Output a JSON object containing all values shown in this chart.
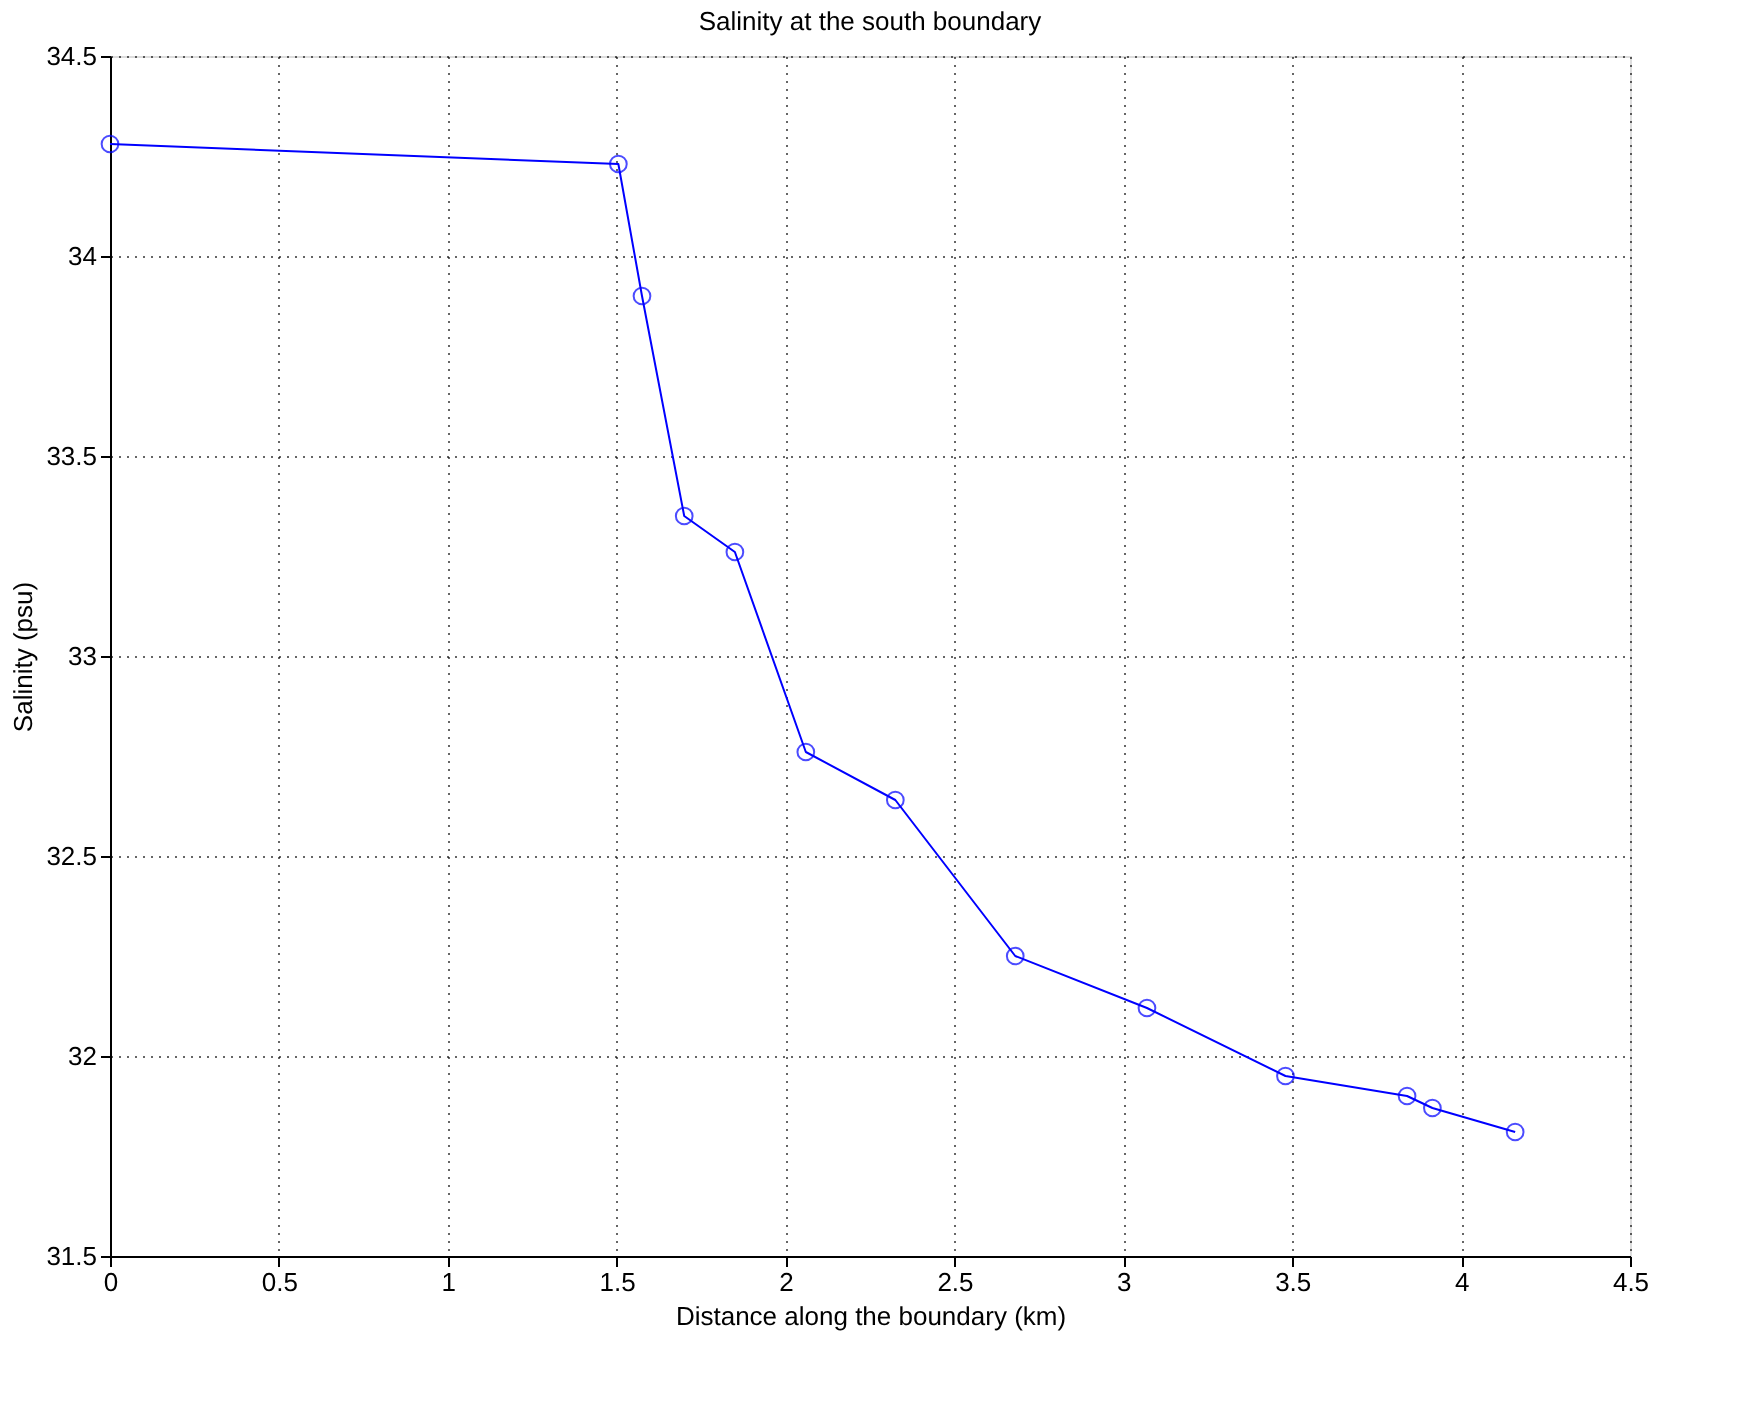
{
  "chart_data": {
    "type": "line",
    "title": "Salinity at the south boundary",
    "xlabel": "Distance along the boundary (km)",
    "ylabel": "Salinity (psu)",
    "x": [
      0,
      1.505,
      1.575,
      1.7,
      1.85,
      2.06,
      2.325,
      2.68,
      3.07,
      3.48,
      3.84,
      3.915,
      4.16
    ],
    "series": [
      {
        "color": "#0000ff",
        "values": [
          34.28,
          34.23,
          33.9,
          33.35,
          33.26,
          32.76,
          32.64,
          32.25,
          32.12,
          31.95,
          31.9,
          31.87,
          31.81
        ]
      }
    ],
    "xlim": [
      0,
      4.5
    ],
    "xticks": [
      0,
      0.5,
      1,
      1.5,
      2,
      2.5,
      3,
      3.5,
      4,
      4.5
    ],
    "ylim": [
      31.5,
      34.5
    ],
    "yticks": [
      31.5,
      32,
      32.5,
      33,
      33.5,
      34,
      34.5
    ],
    "grid": true,
    "marker": "circle",
    "line_style": "solid"
  }
}
